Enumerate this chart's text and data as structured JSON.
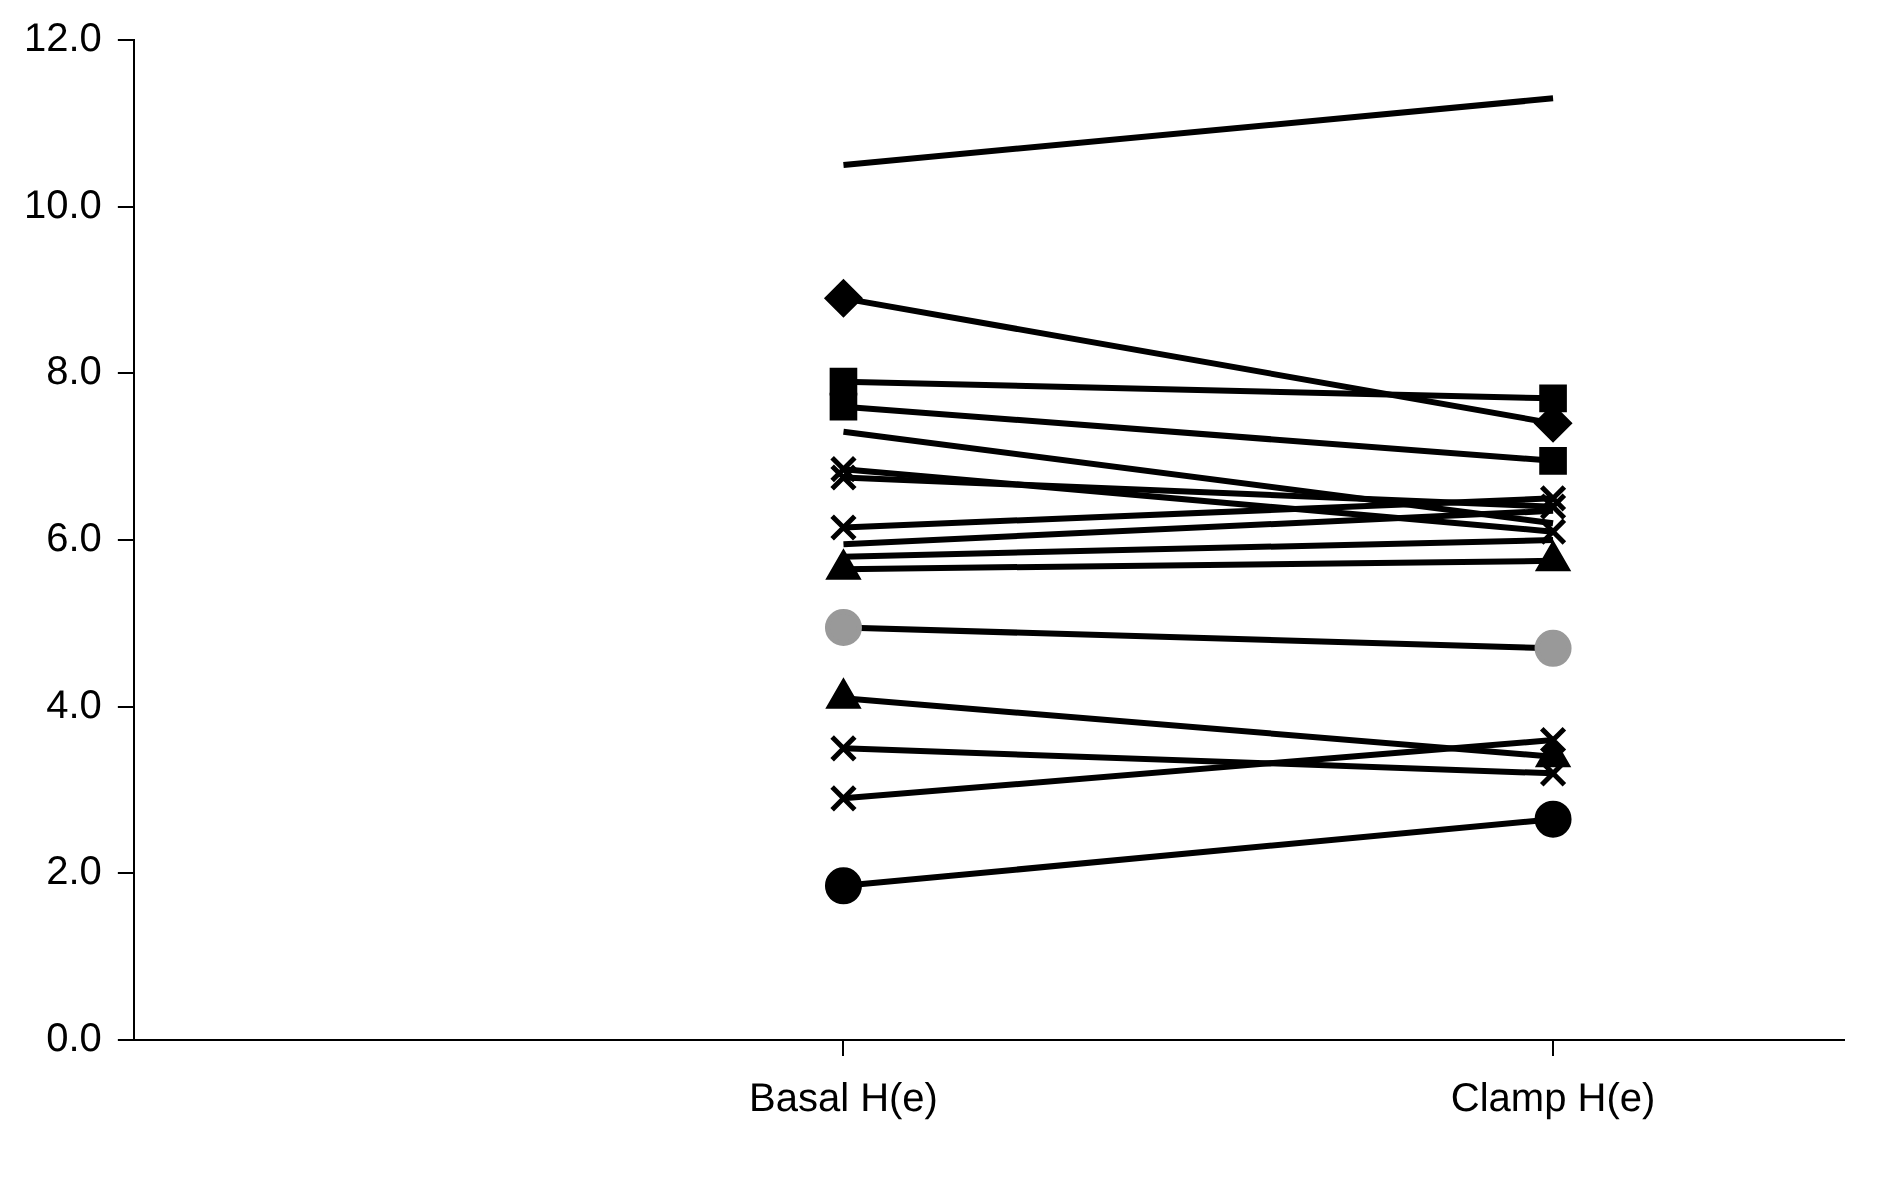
{
  "chart_data": {
    "type": "line",
    "categories": [
      "Basal H(e)",
      "Clamp H(e)"
    ],
    "ylim": [
      0,
      12
    ],
    "yticks": [
      {
        "value": 0,
        "label": "0.0"
      },
      {
        "value": 2,
        "label": "2.0"
      },
      {
        "value": 4,
        "label": "4.0"
      },
      {
        "value": 6,
        "label": "6.0"
      },
      {
        "value": 8,
        "label": "8.0"
      },
      {
        "value": 10,
        "label": "10.0"
      },
      {
        "value": 12,
        "label": "12.0"
      }
    ],
    "grid": false,
    "legend": false,
    "line_style": "solid",
    "series": [
      {
        "color": "#000000",
        "marker": "none",
        "values": [
          10.5,
          11.3
        ]
      },
      {
        "color": "#000000",
        "marker": "diamond",
        "values": [
          8.9,
          7.4
        ]
      },
      {
        "color": "#000000",
        "marker": "square",
        "values": [
          7.9,
          7.7
        ]
      },
      {
        "color": "#000000",
        "marker": "square",
        "values": [
          7.6,
          6.95
        ]
      },
      {
        "color": "#000000",
        "marker": "none",
        "values": [
          7.3,
          6.2
        ]
      },
      {
        "color": "#000000",
        "marker": "cross",
        "values": [
          6.85,
          6.1
        ]
      },
      {
        "color": "#000000",
        "marker": "cross",
        "values": [
          6.75,
          6.4
        ]
      },
      {
        "color": "#000000",
        "marker": "cross",
        "values": [
          6.15,
          6.5
        ]
      },
      {
        "color": "#000000",
        "marker": "none",
        "values": [
          5.95,
          6.35
        ]
      },
      {
        "color": "#000000",
        "marker": "none",
        "values": [
          5.8,
          6.0
        ]
      },
      {
        "color": "#000000",
        "marker": "triangle",
        "values": [
          5.65,
          5.75
        ]
      },
      {
        "color": "#999999",
        "marker": "circle",
        "values": [
          4.95,
          4.7
        ]
      },
      {
        "color": "#000000",
        "marker": "triangle",
        "values": [
          4.1,
          3.4
        ]
      },
      {
        "color": "#000000",
        "marker": "cross",
        "values": [
          3.5,
          3.2
        ]
      },
      {
        "color": "#000000",
        "marker": "cross",
        "values": [
          2.9,
          3.6
        ]
      },
      {
        "color": "#000000",
        "marker": "circle",
        "values": [
          1.85,
          2.65
        ]
      }
    ]
  }
}
